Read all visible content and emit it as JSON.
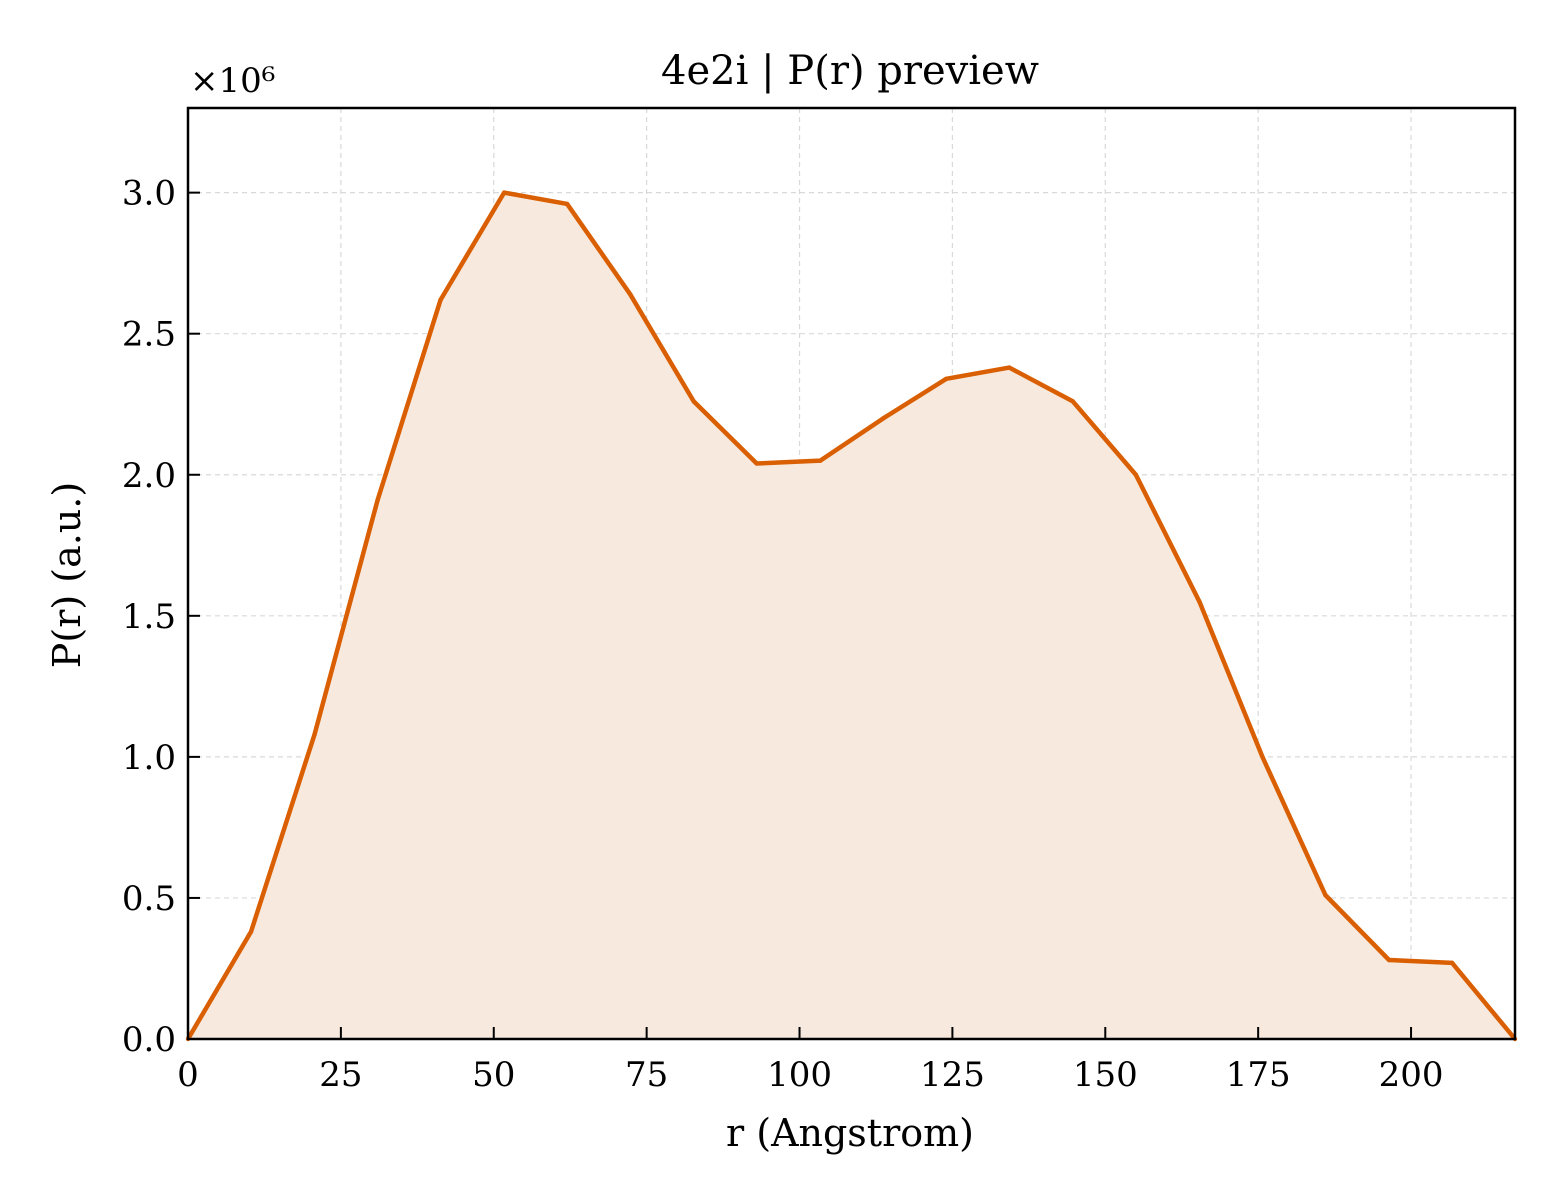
{
  "chart_data": {
    "type": "area",
    "title": "4e2i | P(r) preview",
    "xlabel": "r (Angstrom)",
    "ylabel": "P(r) (a.u.)",
    "y_multiplier_label": "×10⁶",
    "xlim": [
      0,
      217
    ],
    "ylim": [
      0,
      3.3
    ],
    "y_scale": 1000000,
    "x_ticks": [
      0,
      25,
      50,
      75,
      100,
      125,
      150,
      175,
      200
    ],
    "y_ticks": [
      0.0,
      0.5,
      1.0,
      1.5,
      2.0,
      2.5,
      3.0
    ],
    "y_tick_labels": [
      "0.0",
      "0.5",
      "1.0",
      "1.5",
      "2.0",
      "2.5",
      "3.0"
    ],
    "grid": true,
    "series": [
      {
        "color": "#d95f02",
        "fill_color": "#f8e9de",
        "x": [
          0,
          10.3,
          20.7,
          31.0,
          41.3,
          51.7,
          62.0,
          72.3,
          82.7,
          93.0,
          103.4,
          113.7,
          124.0,
          134.3,
          144.7,
          155.0,
          165.4,
          175.7,
          186.0,
          196.4,
          206.7,
          217.0
        ],
        "y": [
          0.0,
          0.38,
          1.08,
          1.91,
          2.62,
          3.0,
          2.96,
          2.64,
          2.26,
          2.04,
          2.05,
          2.2,
          2.34,
          2.38,
          2.26,
          2.0,
          1.55,
          1.0,
          0.51,
          0.28,
          0.27,
          0.0
        ]
      }
    ]
  }
}
